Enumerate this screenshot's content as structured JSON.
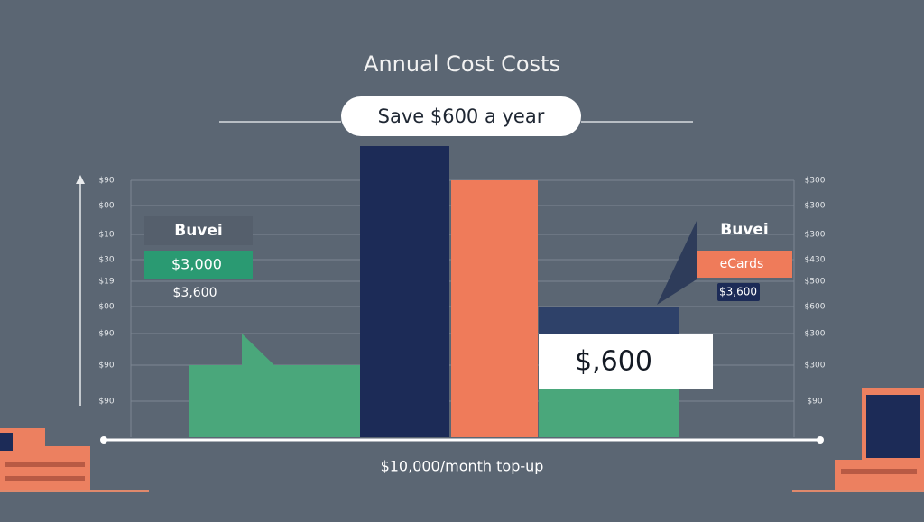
{
  "title": "Annual Cost Costs",
  "badge": "Save $600 a year",
  "left_panel": {
    "heading": "Buvei",
    "primary": "$3,000",
    "secondary": "$3,600"
  },
  "right_panel": {
    "heading": "Buvei",
    "primary": "eCards",
    "secondary": "$3,600"
  },
  "callout": "$,600",
  "footer": "$10,000/month top-up",
  "left_axis_labels": [
    "$90",
    "$00",
    "$10",
    "$30",
    "$19",
    "$00",
    "$90",
    "$90",
    "$90"
  ],
  "right_axis_labels": [
    "$300",
    "$300",
    "$300",
    "$430",
    "$500",
    "$600",
    "$300",
    "$300",
    "$90"
  ]
}
